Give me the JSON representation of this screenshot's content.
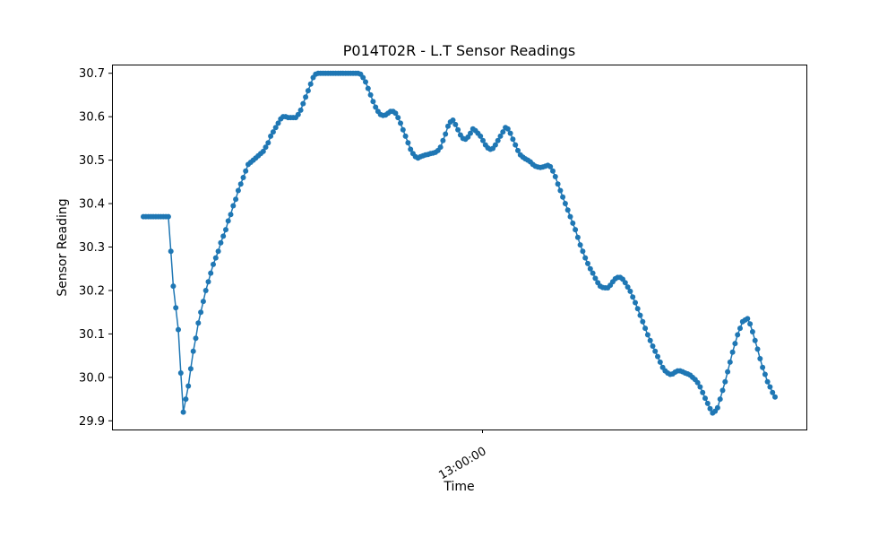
{
  "chart_data": {
    "type": "line",
    "title": "P014T02R - L.T Sensor Readings",
    "xlabel": "Time",
    "ylabel": "Sensor Reading",
    "ylim": [
      29.88,
      30.72
    ],
    "yticks": [
      "29.9",
      "30.0",
      "30.1",
      "30.2",
      "30.3",
      "30.4",
      "30.5",
      "30.6",
      "30.7"
    ],
    "xticks": [
      "13:00:00"
    ],
    "grid": false,
    "color": "#1f77b4",
    "series": [
      {
        "values": [
          30.37,
          30.37,
          30.37,
          30.37,
          30.37,
          30.37,
          30.37,
          30.37,
          30.37,
          30.37,
          30.37,
          30.29,
          30.21,
          30.16,
          30.11,
          30.01,
          29.92,
          29.95,
          29.98,
          30.02,
          30.06,
          30.09,
          30.125,
          30.15,
          30.175,
          30.2,
          30.22,
          30.24,
          30.26,
          30.275,
          30.29,
          30.31,
          30.325,
          30.34,
          30.36,
          30.375,
          30.395,
          30.41,
          30.43,
          30.445,
          30.46,
          30.475,
          30.49,
          30.495,
          30.5,
          30.505,
          30.51,
          30.515,
          30.52,
          30.53,
          30.54,
          30.555,
          30.565,
          30.575,
          30.585,
          30.595,
          30.6,
          30.6,
          30.598,
          30.598,
          30.598,
          30.598,
          30.605,
          30.615,
          30.63,
          30.645,
          30.66,
          30.675,
          30.69,
          30.698,
          30.7,
          30.7,
          30.7,
          30.7,
          30.7,
          30.7,
          30.7,
          30.7,
          30.7,
          30.7,
          30.7,
          30.7,
          30.7,
          30.7,
          30.7,
          30.7,
          30.7,
          30.698,
          30.69,
          30.68,
          30.665,
          30.65,
          30.635,
          30.622,
          30.612,
          30.605,
          30.603,
          30.604,
          30.608,
          30.612,
          30.612,
          30.608,
          30.598,
          30.585,
          30.57,
          30.555,
          30.54,
          30.525,
          30.515,
          30.508,
          30.505,
          30.508,
          30.51,
          30.512,
          30.513,
          30.515,
          30.516,
          30.518,
          30.522,
          30.53,
          30.545,
          30.56,
          30.578,
          30.588,
          30.592,
          30.582,
          30.57,
          30.558,
          30.55,
          30.548,
          30.553,
          30.562,
          30.572,
          30.568,
          30.562,
          30.555,
          30.545,
          30.535,
          30.528,
          30.525,
          30.527,
          30.535,
          30.545,
          30.555,
          30.565,
          30.575,
          30.572,
          30.562,
          30.548,
          30.535,
          30.522,
          30.512,
          30.507,
          30.503,
          30.5,
          30.496,
          30.49,
          30.486,
          30.484,
          30.483,
          30.484,
          30.486,
          30.488,
          30.485,
          30.475,
          30.462,
          30.445,
          30.43,
          30.415,
          30.4,
          30.385,
          30.37,
          30.355,
          30.34,
          30.322,
          30.305,
          30.29,
          30.275,
          30.262,
          30.25,
          30.24,
          30.228,
          30.218,
          30.21,
          30.207,
          30.206,
          30.206,
          30.212,
          30.22,
          30.227,
          30.23,
          30.23,
          30.226,
          30.218,
          30.208,
          30.198,
          30.185,
          30.172,
          30.158,
          30.143,
          30.128,
          30.113,
          30.098,
          30.085,
          30.072,
          30.06,
          30.048,
          30.035,
          30.023,
          30.015,
          30.01,
          30.007,
          30.008,
          30.012,
          30.015,
          30.015,
          30.013,
          30.01,
          30.008,
          30.005,
          30.0,
          29.995,
          29.988,
          29.978,
          29.965,
          29.952,
          29.94,
          29.928,
          29.918,
          29.922,
          29.93,
          29.95,
          29.97,
          29.99,
          30.013,
          30.035,
          30.058,
          30.078,
          30.098,
          30.113,
          30.128,
          30.132,
          30.135,
          30.123,
          30.105,
          30.085,
          30.065,
          30.043,
          30.023,
          30.007,
          29.99,
          29.978,
          29.965,
          29.955
        ]
      }
    ]
  }
}
